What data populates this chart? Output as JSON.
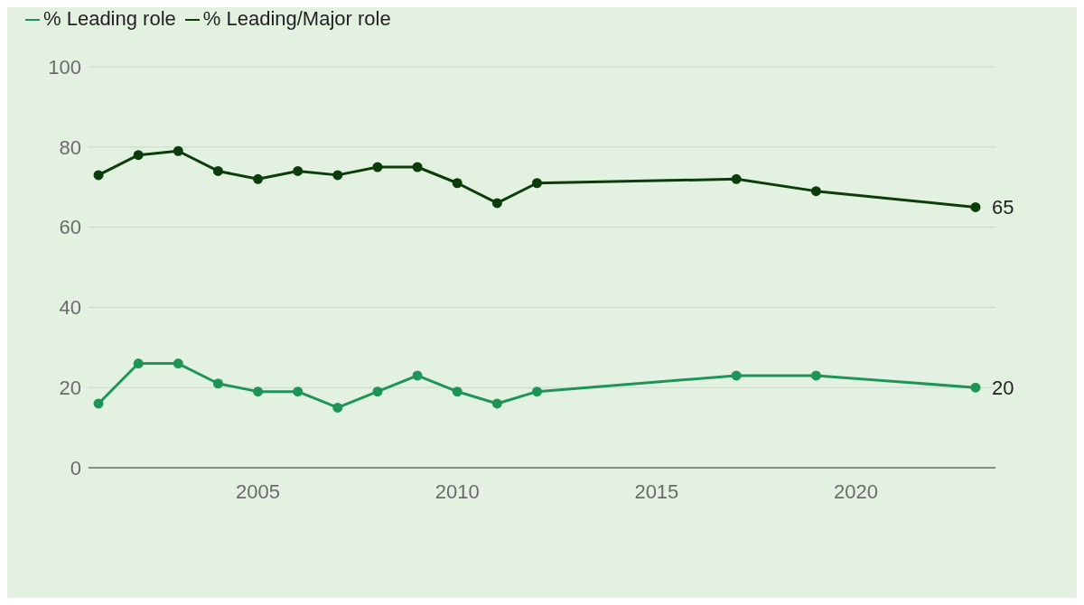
{
  "chart_data": {
    "type": "line",
    "x": [
      2001,
      2002,
      2003,
      2004,
      2005,
      2006,
      2007,
      2008,
      2009,
      2010,
      2011,
      2012,
      2017,
      2019,
      2023
    ],
    "series": [
      {
        "name": "% Leading role",
        "color": "#1e9457",
        "values": [
          16,
          26,
          26,
          21,
          19,
          19,
          15,
          19,
          23,
          19,
          16,
          19,
          23,
          23,
          20
        ],
        "value_labels": [
          null,
          null,
          null,
          null,
          null,
          null,
          null,
          null,
          null,
          null,
          null,
          null,
          null,
          null,
          "20"
        ]
      },
      {
        "name": "% Leading/Major role",
        "color": "#0b3d0b",
        "values": [
          73,
          78,
          79,
          74,
          72,
          74,
          73,
          75,
          75,
          71,
          66,
          71,
          72,
          69,
          65
        ],
        "value_labels": [
          null,
          null,
          null,
          null,
          null,
          null,
          null,
          null,
          null,
          null,
          null,
          null,
          null,
          null,
          "65"
        ]
      }
    ],
    "xlim": [
      2000.75,
      2023.5
    ],
    "xticks": [
      2005,
      2010,
      2015,
      2020
    ],
    "ylim": [
      0,
      100
    ],
    "yticks": [
      0,
      20,
      40,
      60,
      80,
      100
    ],
    "grid": "y",
    "legend": "top left",
    "marker": "circle",
    "line_style": "solid"
  }
}
